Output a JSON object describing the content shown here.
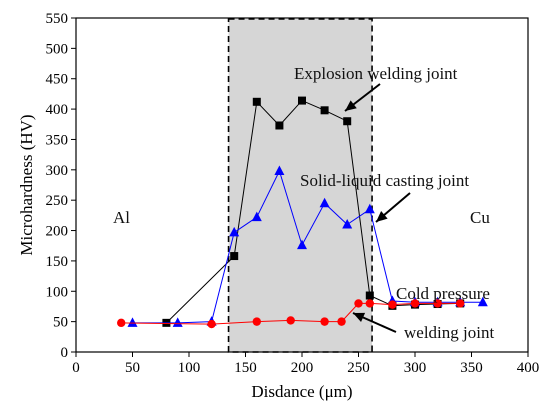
{
  "chart_data": {
    "type": "line",
    "xlabel": "Disdance (μm)",
    "ylabel": "Microhardness (HV)",
    "xlim": [
      0,
      400
    ],
    "ylim": [
      0,
      550
    ],
    "xticks": [
      0,
      50,
      100,
      150,
      200,
      250,
      300,
      350,
      400
    ],
    "yticks": [
      0,
      50,
      100,
      150,
      200,
      250,
      300,
      350,
      400,
      450,
      500,
      550
    ],
    "grid": false,
    "highlight_region": {
      "x_from": 135,
      "x_to": 262,
      "style": "grey shaded, dashed border"
    },
    "series": [
      {
        "marker": "square",
        "color": "#000000",
        "x": [
          80,
          140,
          160,
          180,
          200,
          220,
          240,
          260,
          280,
          300,
          320,
          340
        ],
        "y": [
          48,
          158,
          412,
          373,
          414,
          398,
          380,
          93,
          76,
          78,
          79,
          80
        ]
      },
      {
        "marker": "triangle",
        "color": "#0000ff",
        "x": [
          50,
          90,
          120,
          140,
          160,
          180,
          200,
          220,
          240,
          260,
          280,
          300,
          320,
          340,
          360
        ],
        "y": [
          48,
          48,
          50,
          197,
          222,
          298,
          176,
          245,
          210,
          235,
          84,
          82,
          82,
          82,
          82
        ]
      },
      {
        "marker": "circle",
        "color": "#ff0000",
        "x": [
          40,
          120,
          160,
          190,
          220,
          235,
          250,
          260,
          280,
          300,
          320,
          340
        ],
        "y": [
          48,
          46,
          50,
          52,
          50,
          50,
          80,
          80,
          78,
          80,
          80,
          80
        ]
      }
    ],
    "annotations": [
      {
        "text": "Explosion welding joint"
      },
      {
        "text": "Solid-liquid casting joint"
      },
      {
        "text": "Cold pressure"
      },
      {
        "text": "welding joint"
      },
      {
        "text": "Al"
      },
      {
        "text": "Cu"
      }
    ]
  }
}
